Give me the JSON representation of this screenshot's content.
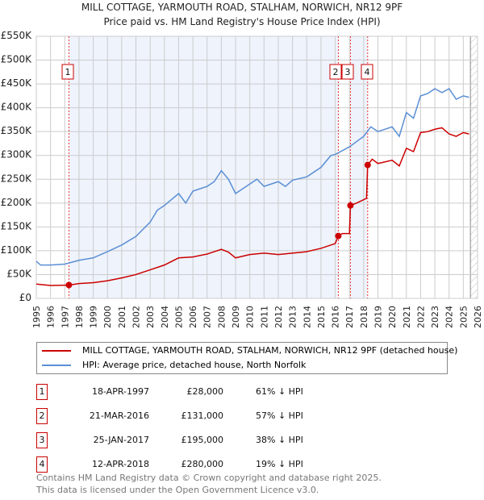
{
  "chart_data": {
    "type": "line",
    "title": "MILL COTTAGE, YARMOUTH ROAD, STALHAM, NORWICH, NR12 9PF",
    "subtitle": "Price paid vs. HM Land Registry's House Price Index (HPI)",
    "xlim": [
      1995,
      2026
    ],
    "ylim": [
      0,
      550000
    ],
    "xticks": [
      1995,
      1996,
      1997,
      1998,
      1999,
      2000,
      2001,
      2002,
      2003,
      2004,
      2005,
      2006,
      2007,
      2008,
      2009,
      2010,
      2011,
      2012,
      2013,
      2014,
      2015,
      2016,
      2017,
      2018,
      2019,
      2020,
      2021,
      2022,
      2023,
      2024,
      2025,
      2026
    ],
    "yticks": [
      {
        "v": 0,
        "label": "£0"
      },
      {
        "v": 50000,
        "label": "£50K"
      },
      {
        "v": 100000,
        "label": "£100K"
      },
      {
        "v": 150000,
        "label": "£150K"
      },
      {
        "v": 200000,
        "label": "£200K"
      },
      {
        "v": 250000,
        "label": "£250K"
      },
      {
        "v": 300000,
        "label": "£300K"
      },
      {
        "v": 350000,
        "label": "£350K"
      },
      {
        "v": 400000,
        "label": "£400K"
      },
      {
        "v": 450000,
        "label": "£450K"
      },
      {
        "v": 500000,
        "label": "£500K"
      },
      {
        "v": 550000,
        "label": "£550K"
      }
    ],
    "grid": true,
    "series": [
      {
        "name": "MILL COTTAGE, YARMOUTH ROAD, STALHAM, NORWICH, NR12 9PF (detached house)",
        "color": "#cc0000",
        "x": [
          1995,
          1996,
          1997.3,
          1998,
          1999,
          2000,
          2001,
          2002,
          2003,
          2004,
          2005,
          2006,
          2007,
          2008,
          2008.5,
          2009,
          2010,
          2011,
          2012,
          2013,
          2014,
          2015,
          2016,
          2016.22,
          2016.5,
          2017.0,
          2017.07,
          2017.5,
          2018.2,
          2018.28,
          2018.6,
          2019,
          2020,
          2020.5,
          2021,
          2021.5,
          2022,
          2022.5,
          2023,
          2023.5,
          2024,
          2024.5,
          2025,
          2025.4
        ],
        "y": [
          30000,
          27000,
          28000,
          31000,
          33000,
          37000,
          43000,
          50000,
          60000,
          70000,
          85000,
          87000,
          93000,
          103000,
          97000,
          85000,
          92000,
          95000,
          92000,
          95000,
          98000,
          105000,
          115000,
          131000,
          136000,
          136000,
          195000,
          200000,
          210000,
          280000,
          292000,
          283000,
          290000,
          278000,
          315000,
          308000,
          348000,
          350000,
          355000,
          358000,
          345000,
          340000,
          348000,
          345000
        ]
      },
      {
        "name": "HPI: Average price, detached house, North Norfolk",
        "color": "#5b8fd4",
        "x": [
          1995,
          1995.3,
          1996,
          1997,
          1998,
          1999,
          2000,
          2001,
          2002,
          2003,
          2003.5,
          2004,
          2005,
          2005.5,
          2006,
          2007,
          2007.5,
          2008,
          2008.5,
          2009,
          2010,
          2010.5,
          2011,
          2012,
          2012.5,
          2013,
          2014,
          2015,
          2015.7,
          2016,
          2017,
          2018,
          2018.5,
          2019,
          2020,
          2020.5,
          2021,
          2021.5,
          2022,
          2022.5,
          2023,
          2023.5,
          2024,
          2024.5,
          2025,
          2025.4
        ],
        "y": [
          78000,
          70000,
          70000,
          72000,
          80000,
          85000,
          98000,
          112000,
          130000,
          160000,
          185000,
          195000,
          220000,
          200000,
          225000,
          235000,
          245000,
          268000,
          250000,
          220000,
          240000,
          250000,
          235000,
          245000,
          235000,
          248000,
          255000,
          275000,
          300000,
          302000,
          318000,
          340000,
          360000,
          350000,
          360000,
          340000,
          390000,
          378000,
          425000,
          430000,
          440000,
          432000,
          440000,
          418000,
          425000,
          422000
        ]
      }
    ],
    "sales": [
      {
        "n": "1",
        "x": 1997.29,
        "y": 28000,
        "date": "18-APR-1997",
        "price": "£28,000",
        "hpi": "61% ↓ HPI"
      },
      {
        "n": "2",
        "x": 2016.22,
        "y": 131000,
        "date": "21-MAR-2016",
        "price": "£131,000",
        "hpi": "57% ↓ HPI"
      },
      {
        "n": "3",
        "x": 2017.07,
        "y": 195000,
        "date": "25-JAN-2017",
        "price": "£195,000",
        "hpi": "38% ↓ HPI"
      },
      {
        "n": "4",
        "x": 2018.28,
        "y": 280000,
        "date": "12-APR-2018",
        "price": "£280,000",
        "hpi": "19% ↓ HPI"
      }
    ],
    "shaded_ranges": [
      [
        1997.29,
        2016.22
      ],
      [
        2017.07,
        2018.28
      ]
    ],
    "forecast_from": 2025.5
  },
  "footer": {
    "line1": "Contains HM Land Registry data © Crown copyright and database right 2025.",
    "line2": "This data is licensed under the Open Government Licence v3.0."
  }
}
